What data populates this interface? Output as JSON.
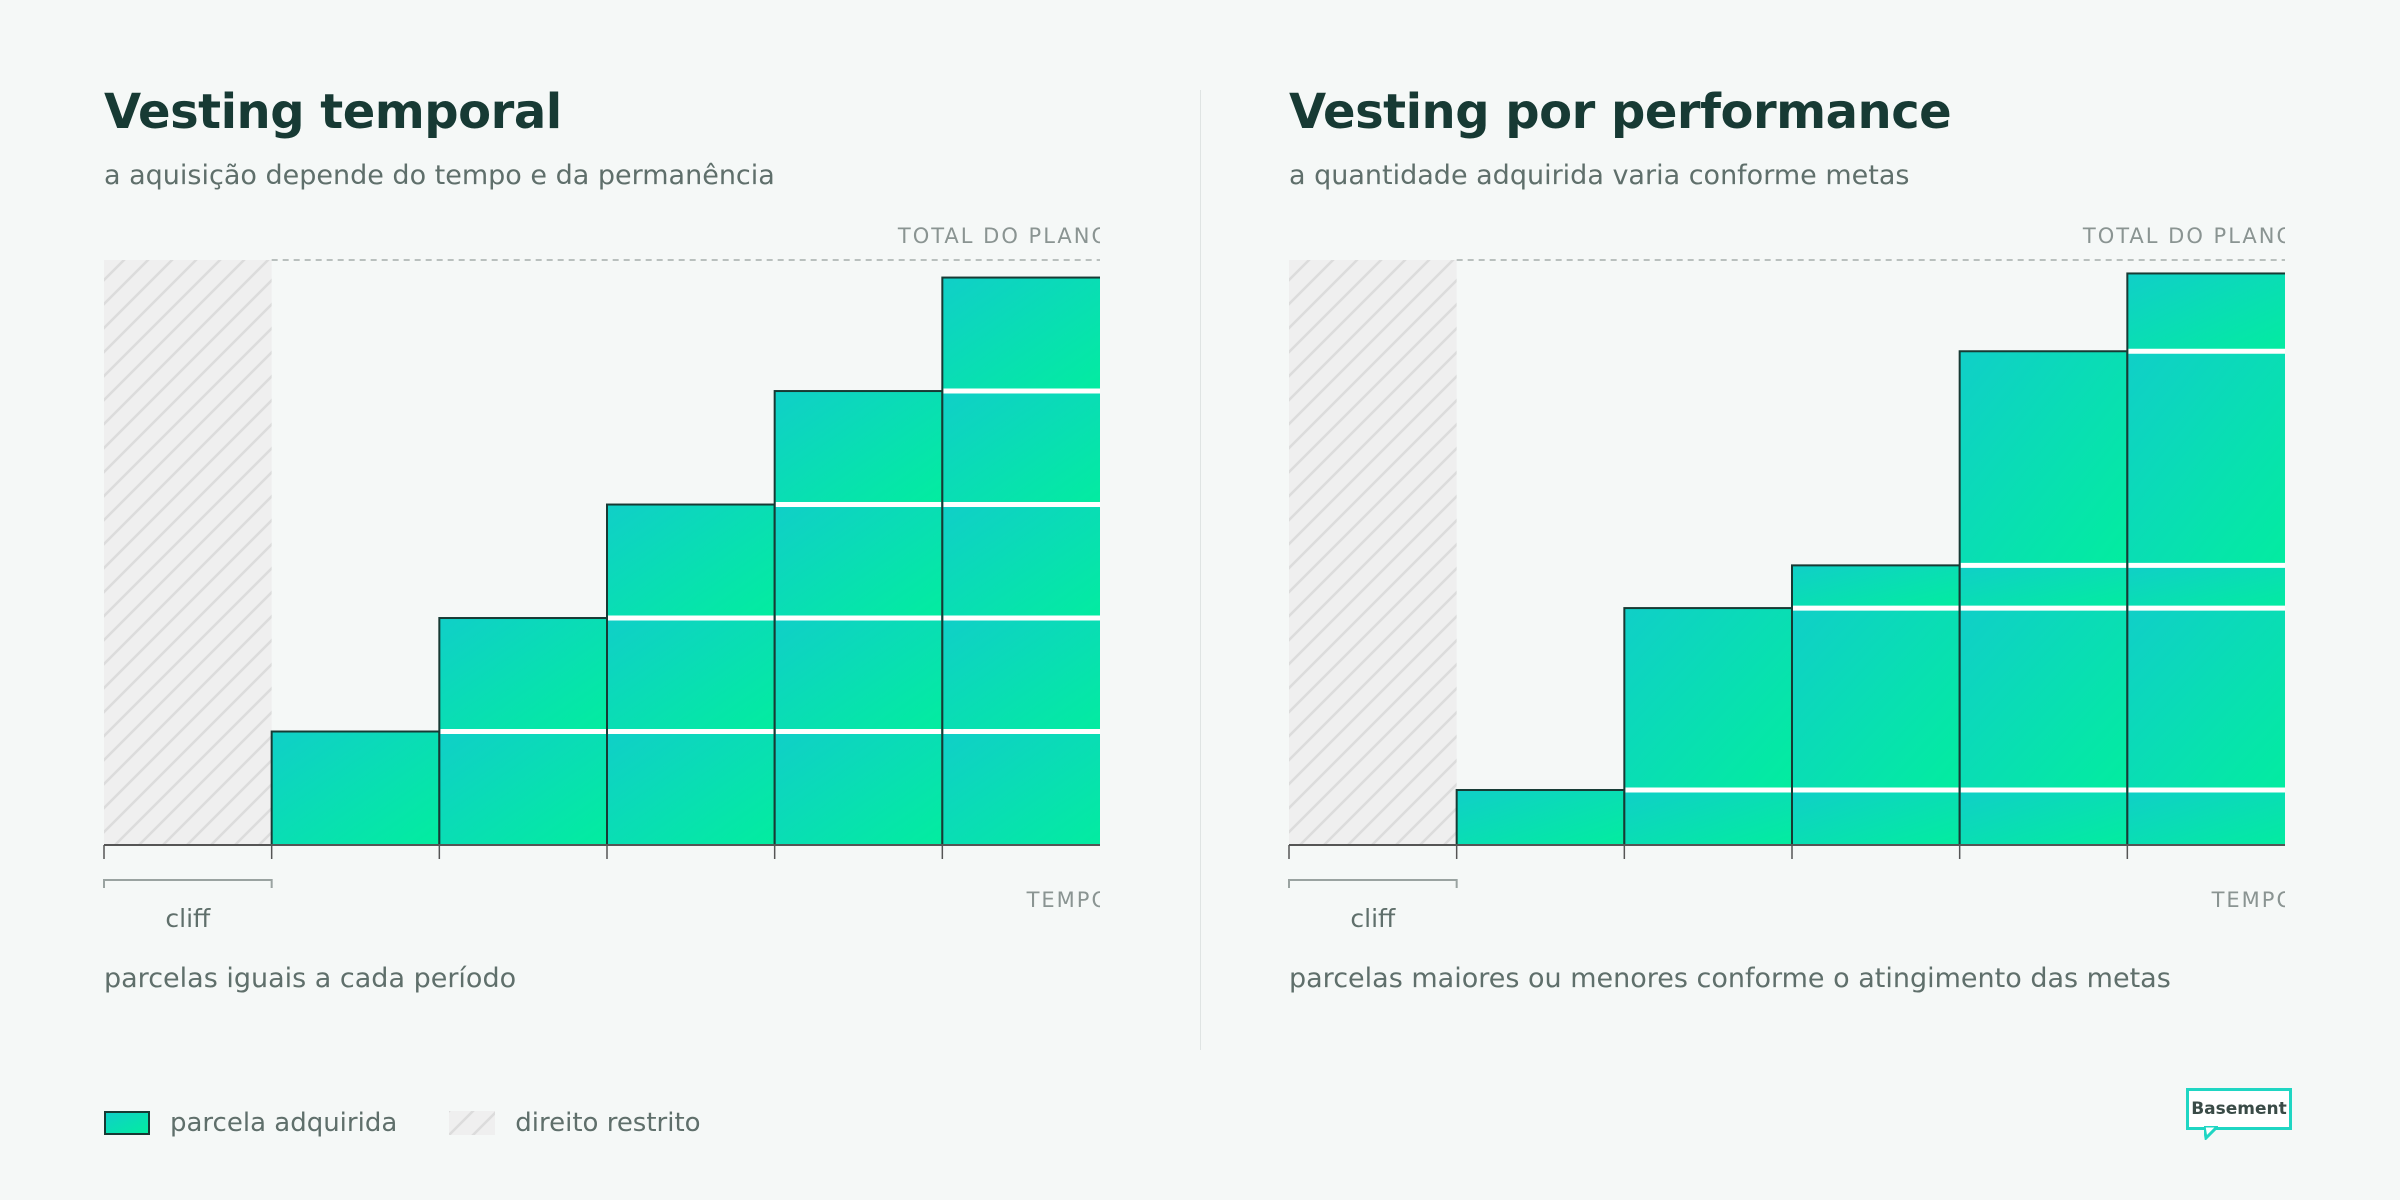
{
  "colors": {
    "gradient_start": "#10cfc8",
    "gradient_end": "#02ed9f",
    "text_dark": "#173a34",
    "text_muted": "#5f6f6b",
    "hatch_bg": "#efefef",
    "hatch_line": "#dcdcdc",
    "brand_accent": "#1fd6c3"
  },
  "panels": [
    {
      "title": "Vesting temporal",
      "subtitle": "a aquisição depende do tempo e da permanência",
      "total_label": "TOTAL DO PLANO",
      "time_label": "TEMPO",
      "cliff_label": "cliff",
      "footnote": "parcelas iguais a cada período",
      "chart_data": {
        "type": "bar",
        "stacked": true,
        "ylim": [
          0,
          100
        ],
        "cliff_periods": 1,
        "total_line": 100,
        "columns": [
          [
            19.4
          ],
          [
            19.4,
            19.4
          ],
          [
            19.4,
            19.4,
            19.4
          ],
          [
            19.4,
            19.4,
            19.4,
            19.4
          ],
          [
            19.4,
            19.4,
            19.4,
            19.4,
            19.4
          ]
        ]
      }
    },
    {
      "title": "Vesting por performance",
      "subtitle": "a quantidade adquirida varia conforme metas",
      "total_label": "TOTAL DO PLANO",
      "time_label": "TEMPO",
      "cliff_label": "cliff",
      "footnote": "parcelas maiores ou menores conforme o atingimento das metas",
      "chart_data": {
        "type": "bar",
        "stacked": true,
        "ylim": [
          0,
          100
        ],
        "cliff_periods": 1,
        "total_line": 100,
        "columns": [
          [
            9.4
          ],
          [
            9.4,
            31.1
          ],
          [
            9.4,
            31.1,
            7.3
          ],
          [
            9.4,
            31.1,
            7.3,
            36.6
          ],
          [
            9.4,
            31.1,
            7.3,
            36.6,
            13.3
          ]
        ]
      }
    }
  ],
  "legend": {
    "vested_label": "parcela adquirida",
    "restricted_label": "direito restrito"
  },
  "brand": {
    "name": "Basement"
  }
}
